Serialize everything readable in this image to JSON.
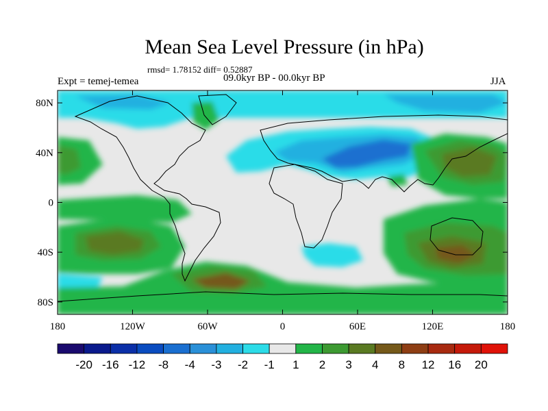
{
  "title": "Mean Sea Level Pressure (in hPa)",
  "stats_text": "rmsd= 1.78152 diff= 0.52887",
  "expt_text": "Expt = temej-temea",
  "period_text": "09.0kyr BP - 00.0kyr BP",
  "season_text": "JJA",
  "map_data": {
    "type": "filled-contour-map",
    "variable": "Mean Sea Level Pressure difference",
    "units": "hPa",
    "lon_range": [
      -180,
      180
    ],
    "lat_range": [
      -90,
      90
    ],
    "x_ticks": [
      "180",
      "120W",
      "60W",
      "0",
      "60E",
      "120E",
      "180"
    ],
    "y_ticks": [
      "80N",
      "40N",
      "0",
      "40S",
      "80S"
    ],
    "colorbar": {
      "levels": [
        "-20",
        "-16",
        "-12",
        "-8",
        "-4",
        "-3",
        "-2",
        "-1",
        "1",
        "2",
        "3",
        "4",
        "8",
        "12",
        "16",
        "20"
      ],
      "colors": [
        "#1a0a6e",
        "#0a1a8c",
        "#0b2fa8",
        "#0a4cc0",
        "#1a6fd0",
        "#2a90d8",
        "#22b0e0",
        "#2cdce8",
        "#e8e8e8",
        "#23b548",
        "#3d9a32",
        "#5a7a22",
        "#75591a",
        "#8e3e14",
        "#a82a10",
        "#c51a0a",
        "#e01208"
      ]
    }
  },
  "colors": {
    "neutral": "#e8e8e8",
    "blue_light": "#2cdce8",
    "blue_mid": "#22b0e0",
    "blue_dark": "#1a6fd0",
    "green": "#23b548",
    "green_dark": "#3d9a32",
    "olive": "#5a7a22",
    "brown": "#75591a",
    "coast": "#000000"
  }
}
